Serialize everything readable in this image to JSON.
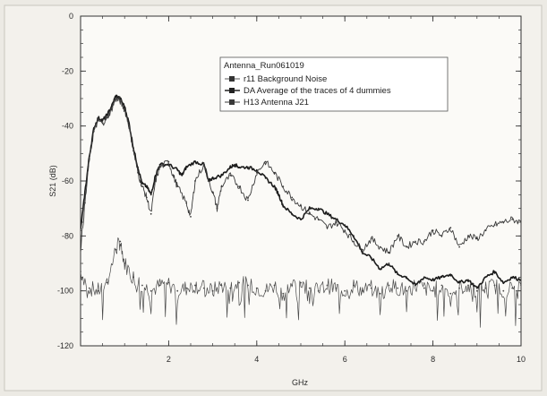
{
  "chart_data": {
    "type": "line",
    "title": "",
    "xlabel": "GHz",
    "ylabel": "S21 (dB)",
    "xlim": [
      0,
      10
    ],
    "ylim": [
      -120,
      0
    ],
    "xticks": [
      2,
      4,
      6,
      8,
      10
    ],
    "yticks": [
      0,
      -20,
      -40,
      -60,
      -80,
      -100,
      -120
    ],
    "x_tick_labels": [
      "2",
      "4",
      "6",
      "8",
      "10"
    ],
    "y_tick_labels": [
      "0",
      "-20",
      "-40",
      "-60",
      "-80",
      "-100",
      "-120"
    ],
    "grid": false,
    "legend": {
      "placement": "top-center",
      "title": "Antenna_Run061019",
      "entries": [
        "r11 Background Noise",
        "DA Average of the traces of 4 dummies",
        "H13 Antenna J21"
      ]
    },
    "series": [
      {
        "name": "r11 Background Noise",
        "x": [
          0.0,
          0.2,
          0.4,
          0.6,
          0.8,
          0.9,
          1.0,
          1.2,
          1.4,
          1.6,
          1.8,
          2.0,
          2.2,
          2.4,
          2.6,
          2.8,
          3.0,
          3.2,
          3.4,
          3.6,
          3.8,
          4.0,
          4.2,
          4.4,
          4.6,
          4.8,
          5.0,
          5.2,
          5.4,
          5.6,
          5.8,
          6.0,
          6.2,
          6.4,
          6.6,
          6.8,
          7.0,
          7.2,
          7.4,
          7.6,
          7.8,
          8.0,
          8.2,
          8.4,
          8.6,
          8.8,
          9.0,
          9.2,
          9.4,
          9.6,
          9.8,
          10.0
        ],
        "values": [
          -93,
          -99,
          -100,
          -97,
          -85,
          -82,
          -90,
          -95,
          -98,
          -100,
          -98,
          -97,
          -100,
          -99,
          -98,
          -99,
          -100,
          -98,
          -99,
          -97,
          -98,
          -99,
          -100,
          -98,
          -101,
          -98,
          -97,
          -99,
          -100,
          -98,
          -99,
          -100,
          -98,
          -100,
          -99,
          -101,
          -98,
          -99,
          -100,
          -98,
          -99,
          -100,
          -98,
          -101,
          -99,
          -98,
          -100,
          -99,
          -98,
          -100,
          -99,
          -98
        ]
      },
      {
        "name": "DA Average of the traces of 4 dummies",
        "x": [
          0.0,
          0.1,
          0.2,
          0.3,
          0.4,
          0.5,
          0.6,
          0.7,
          0.8,
          0.9,
          1.0,
          1.1,
          1.2,
          1.3,
          1.4,
          1.5,
          1.6,
          1.7,
          1.8,
          2.0,
          2.2,
          2.3,
          2.4,
          2.6,
          2.8,
          2.9,
          3.0,
          3.2,
          3.4,
          3.5,
          3.6,
          3.8,
          4.0,
          4.2,
          4.4,
          4.5,
          4.6,
          4.8,
          5.0,
          5.2,
          5.4,
          5.6,
          5.8,
          6.0,
          6.2,
          6.4,
          6.6,
          6.8,
          7.0,
          7.2,
          7.4,
          7.6,
          7.8,
          8.0,
          8.2,
          8.4,
          8.6,
          8.8,
          9.0,
          9.2,
          9.4,
          9.6,
          9.8,
          10.0
        ],
        "values": [
          -78,
          -64,
          -51,
          -41,
          -37,
          -38,
          -36,
          -33,
          -29,
          -30,
          -33,
          -39,
          -48,
          -55,
          -61,
          -62,
          -65,
          -58,
          -54,
          -54,
          -56,
          -58,
          -55,
          -53,
          -54,
          -60,
          -59,
          -58,
          -55,
          -54,
          -55,
          -55,
          -56,
          -59,
          -62,
          -65,
          -69,
          -72,
          -74,
          -70,
          -70,
          -72,
          -74,
          -76,
          -80,
          -86,
          -88,
          -92,
          -90,
          -94,
          -95,
          -98,
          -95,
          -96,
          -95,
          -94,
          -97,
          -96,
          -99,
          -95,
          -93,
          -97,
          -95,
          -96
        ]
      },
      {
        "name": "H13 Antenna J21",
        "x": [
          0.0,
          0.1,
          0.2,
          0.3,
          0.4,
          0.5,
          0.6,
          0.7,
          0.8,
          0.9,
          1.0,
          1.1,
          1.2,
          1.3,
          1.4,
          1.5,
          1.6,
          1.7,
          1.8,
          2.0,
          2.1,
          2.2,
          2.4,
          2.5,
          2.6,
          2.8,
          3.0,
          3.1,
          3.2,
          3.4,
          3.6,
          3.8,
          4.0,
          4.2,
          4.4,
          4.6,
          4.8,
          5.0,
          5.2,
          5.4,
          5.6,
          5.8,
          6.0,
          6.2,
          6.4,
          6.6,
          6.8,
          7.0,
          7.2,
          7.4,
          7.6,
          7.8,
          8.0,
          8.2,
          8.4,
          8.6,
          8.8,
          9.0,
          9.2,
          9.4,
          9.6,
          9.8,
          10.0
        ],
        "values": [
          -85,
          -68,
          -52,
          -42,
          -38,
          -39,
          -37,
          -34,
          -30,
          -31,
          -34,
          -40,
          -49,
          -57,
          -62,
          -66,
          -72,
          -60,
          -55,
          -53,
          -58,
          -62,
          -68,
          -73,
          -60,
          -54,
          -64,
          -70,
          -62,
          -58,
          -62,
          -67,
          -57,
          -53,
          -57,
          -62,
          -66,
          -69,
          -72,
          -74,
          -77,
          -75,
          -78,
          -82,
          -85,
          -81,
          -84,
          -86,
          -80,
          -84,
          -82,
          -82,
          -78,
          -80,
          -77,
          -84,
          -80,
          -81,
          -78,
          -76,
          -75,
          -74,
          -75
        ]
      }
    ]
  }
}
